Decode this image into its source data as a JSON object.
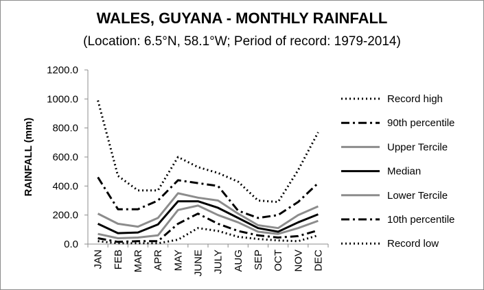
{
  "chart_data": {
    "type": "line",
    "title": "WALES, GUYANA - MONTHLY RAINFALL",
    "subtitle": "(Location: 6.5°N, 58.1°W; Period of record: 1979-2014)",
    "ylabel": "RAINFALL (mm)",
    "xlabel": "",
    "ylim": [
      0,
      1200
    ],
    "yticks": [
      "0.0",
      "200.0",
      "400.0",
      "600.0",
      "800.0",
      "1000.0",
      "1200.0"
    ],
    "grid": false,
    "legend_position": "right",
    "categories": [
      "JAN",
      "FEB",
      "MAR",
      "APR",
      "MAY",
      "JUNE",
      "JULY",
      "AUG",
      "SEP",
      "OCT",
      "NOV",
      "DEC"
    ],
    "series": [
      {
        "name": "Record high",
        "style": "dotted",
        "color": "#000000",
        "values": [
          990,
          470,
          370,
          370,
          600,
          530,
          490,
          430,
          300,
          290,
          510,
          770
        ]
      },
      {
        "name": "90th percentile",
        "style": "dashdot",
        "color": "#000000",
        "values": [
          460,
          240,
          240,
          300,
          440,
          420,
          400,
          230,
          180,
          200,
          290,
          420
        ]
      },
      {
        "name": "Upper Tercile",
        "style": "solid",
        "color": "#8c8c8c",
        "values": [
          210,
          140,
          120,
          180,
          350,
          320,
          300,
          210,
          130,
          110,
          200,
          260
        ]
      },
      {
        "name": "Median",
        "style": "solid",
        "color": "#000000",
        "values": [
          140,
          75,
          80,
          135,
          295,
          295,
          250,
          180,
          110,
          85,
          150,
          205
        ]
      },
      {
        "name": "Lower Tercile",
        "style": "solid",
        "color": "#8c8c8c",
        "values": [
          70,
          40,
          45,
          60,
          235,
          265,
          200,
          150,
          85,
          70,
          110,
          160
        ]
      },
      {
        "name": "10th percentile",
        "style": "dashdot",
        "color": "#000000",
        "values": [
          40,
          15,
          20,
          20,
          140,
          210,
          140,
          90,
          60,
          45,
          55,
          95
        ]
      },
      {
        "name": "Record low",
        "style": "dotted",
        "color": "#000000",
        "values": [
          20,
          5,
          5,
          5,
          30,
          110,
          90,
          50,
          35,
          25,
          20,
          60
        ]
      }
    ]
  }
}
